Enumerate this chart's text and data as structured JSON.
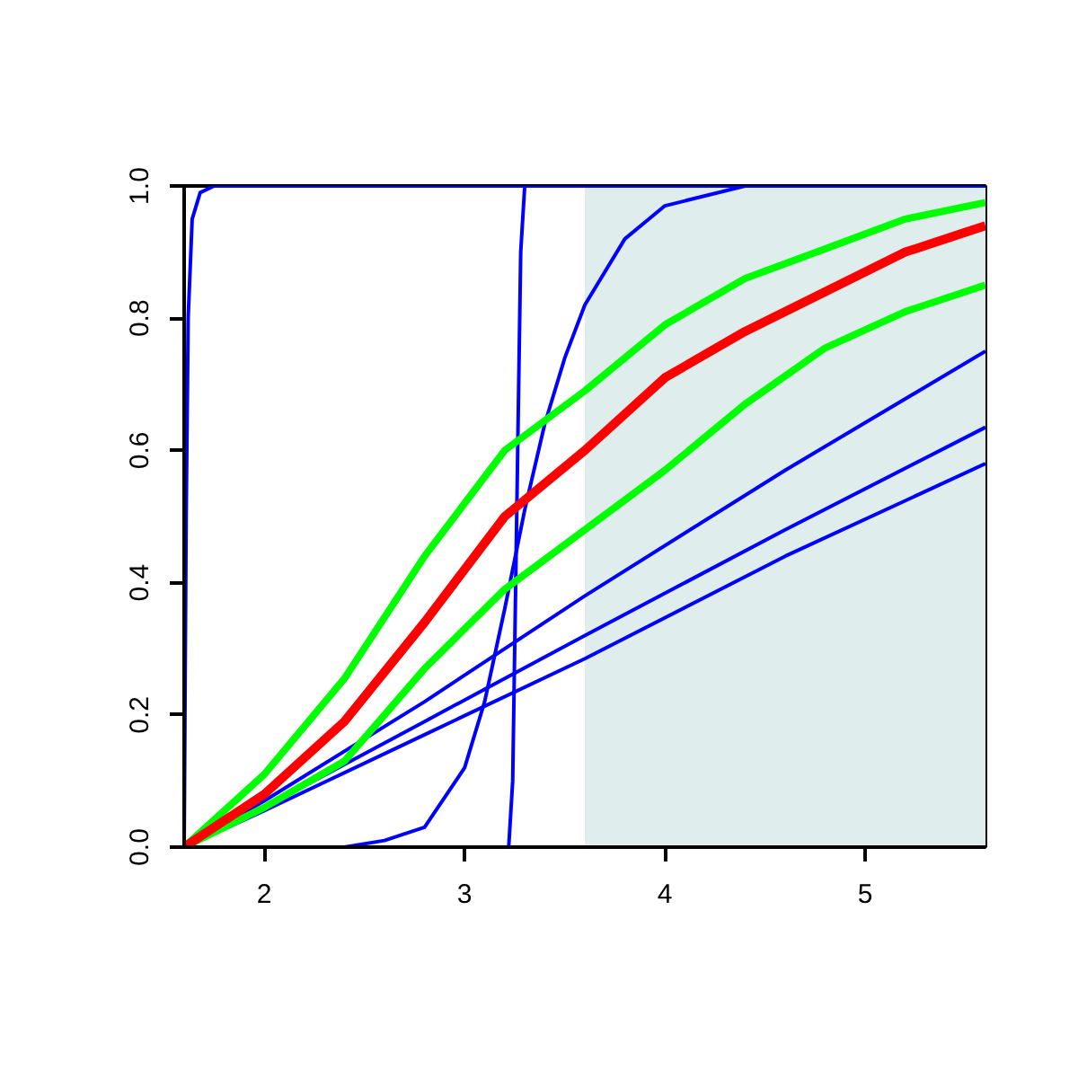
{
  "chart_data": {
    "type": "line",
    "xlim": [
      1.6,
      5.6
    ],
    "ylim": [
      0,
      1
    ],
    "xticks": [
      2,
      3,
      4,
      5
    ],
    "yticks": [
      {
        "value": 0,
        "label": "0.0"
      },
      {
        "value": 0.2,
        "label": "0.2"
      },
      {
        "value": 0.4,
        "label": "0.4"
      },
      {
        "value": 0.6,
        "label": "0.6"
      },
      {
        "value": 0.8,
        "label": "0.8"
      },
      {
        "value": 1,
        "label": "1.0"
      }
    ],
    "grid": false,
    "bands": [
      {
        "axis": "x",
        "from": 3.6,
        "to": 5.6,
        "color": "#e0eded"
      }
    ],
    "series": [
      {
        "color": "#0000ff",
        "x": [
          1.6,
          1.61,
          1.62,
          1.64,
          1.68,
          1.75,
          5.6
        ],
        "values": [
          0,
          0.5,
          0.8,
          0.95,
          0.99,
          1,
          1
        ]
      },
      {
        "color": "#0000ff",
        "x": [
          1.6,
          3.22,
          3.24,
          3.26,
          3.28,
          3.3,
          5.6
        ],
        "values": [
          0,
          0,
          0.1,
          0.5,
          0.9,
          1,
          1
        ]
      },
      {
        "color": "#0000ff",
        "x": [
          1.6,
          2.4,
          2.6,
          2.8,
          3.0,
          3.1,
          3.2,
          3.3,
          3.4,
          3.5,
          3.6,
          3.8,
          4.0,
          4.4,
          5.6
        ],
        "values": [
          0,
          0,
          0.01,
          0.03,
          0.12,
          0.22,
          0.36,
          0.51,
          0.64,
          0.74,
          0.82,
          0.92,
          0.97,
          1,
          1
        ]
      },
      {
        "color": "#0000ff",
        "x": [
          1.6,
          2.0,
          2.8,
          3.6,
          4.6,
          5.6
        ],
        "values": [
          0,
          0.07,
          0.22,
          0.38,
          0.57,
          0.75
        ]
      },
      {
        "color": "#0000ff",
        "x": [
          1.6,
          2.0,
          2.8,
          3.6,
          4.6,
          5.6
        ],
        "values": [
          0,
          0.06,
          0.19,
          0.32,
          0.48,
          0.635
        ]
      },
      {
        "color": "#0000ff",
        "x": [
          1.6,
          2.0,
          2.8,
          3.6,
          4.6,
          5.6
        ],
        "values": [
          0,
          0.055,
          0.17,
          0.285,
          0.44,
          0.58
        ]
      },
      {
        "color": "#00ff00",
        "x": [
          1.6,
          2.0,
          2.4,
          2.8,
          3.2,
          3.6,
          4.0,
          4.4,
          4.8,
          5.2,
          5.6
        ],
        "values": [
          0,
          0.11,
          0.255,
          0.44,
          0.6,
          0.69,
          0.79,
          0.86,
          0.905,
          0.95,
          0.975
        ]
      },
      {
        "color": "#00ff00",
        "x": [
          1.6,
          2.0,
          2.4,
          2.8,
          3.2,
          3.6,
          4.0,
          4.4,
          4.8,
          5.2,
          5.6
        ],
        "values": [
          0,
          0.06,
          0.13,
          0.27,
          0.39,
          0.48,
          0.57,
          0.67,
          0.755,
          0.81,
          0.85
        ]
      },
      {
        "color": "#ff0000",
        "x": [
          1.6,
          2.0,
          2.4,
          2.8,
          3.2,
          3.6,
          4.0,
          4.4,
          4.8,
          5.2,
          5.6
        ],
        "values": [
          0,
          0.08,
          0.19,
          0.34,
          0.5,
          0.6,
          0.71,
          0.78,
          0.84,
          0.9,
          0.94
        ]
      }
    ]
  }
}
